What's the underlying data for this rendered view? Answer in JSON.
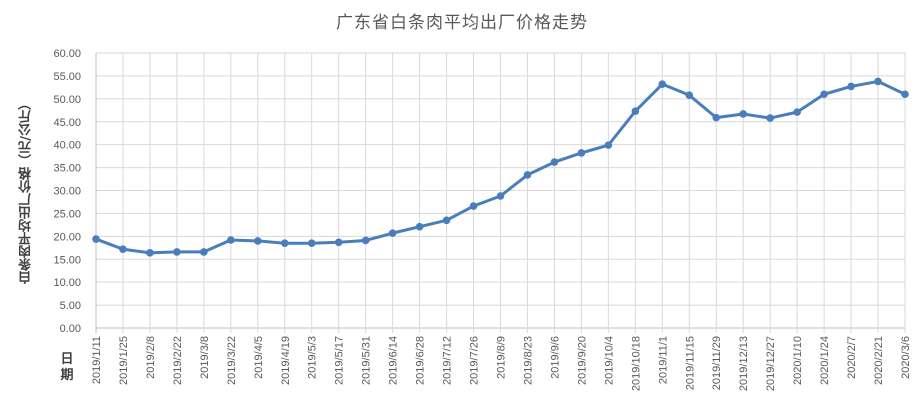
{
  "chart_data": {
    "type": "line",
    "title": "广东省白条肉平均出厂价格走势",
    "xlabel": "日期",
    "ylabel": "白条肉平均出厂价格（元/公斤）",
    "ylim": [
      0,
      60
    ],
    "yticks": [
      "0.00",
      "5.00",
      "10.00",
      "15.00",
      "20.00",
      "25.00",
      "30.00",
      "35.00",
      "40.00",
      "45.00",
      "50.00",
      "55.00",
      "60.00"
    ],
    "grid": true,
    "legend": "none",
    "categories": [
      "2019/1/11",
      "2019/1/25",
      "2019/2/8",
      "2019/2/22",
      "2019/3/8",
      "2019/3/22",
      "2019/4/5",
      "2019/4/19",
      "2019/5/3",
      "2019/5/17",
      "2019/5/31",
      "2019/6/14",
      "2019/6/28",
      "2019/7/12",
      "2019/7/26",
      "2019/8/9",
      "2019/8/23",
      "2019/9/6",
      "2019/9/20",
      "2019/10/4",
      "2019/10/18",
      "2019/11/1",
      "2019/11/15",
      "2019/11/29",
      "2019/12/13",
      "2019/12/27",
      "2020/1/10",
      "2020/1/24",
      "2020/2/7",
      "2020/2/21",
      "2020/3/6"
    ],
    "series": [
      {
        "name": "白条肉平均出厂价格",
        "color": "#4a7ebb",
        "values": [
          19.4,
          17.2,
          16.4,
          16.6,
          16.6,
          19.2,
          19.0,
          18.5,
          18.5,
          18.7,
          19.1,
          20.7,
          22.1,
          23.5,
          26.6,
          28.8,
          33.4,
          36.2,
          38.2,
          39.9,
          47.3,
          53.2,
          50.8,
          45.9,
          46.7,
          45.8,
          47.1,
          51.0,
          52.7,
          53.8,
          51.0
        ]
      }
    ]
  },
  "colors": {
    "line": "#4a7ebb",
    "grid": "#d9d9d9",
    "axis": "#bfbfbf",
    "text": "#595959"
  }
}
